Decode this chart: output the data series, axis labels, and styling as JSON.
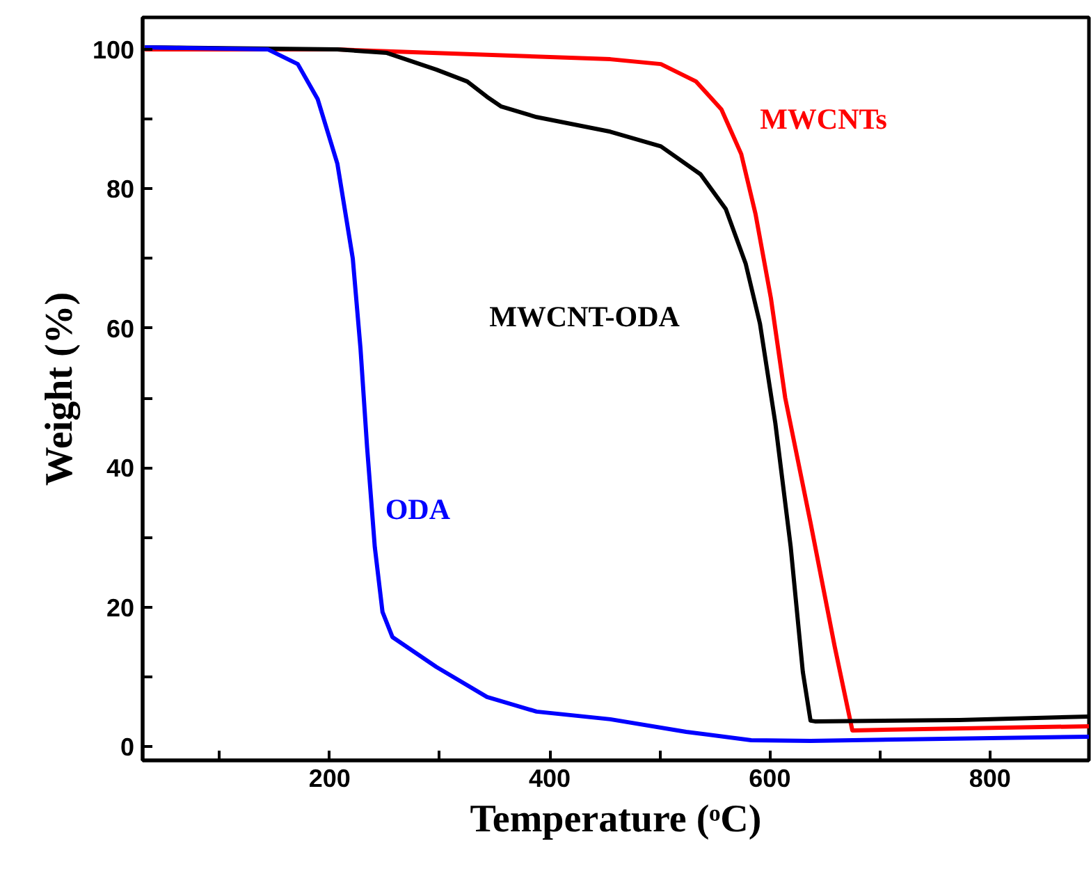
{
  "chart_data": {
    "type": "line",
    "xlabel": "Temperature (ᵒC)",
    "ylabel": "Weight (%)",
    "xlim": [
      30,
      890
    ],
    "ylim": [
      -2,
      104.6
    ],
    "xticks": [
      {
        "value": 100,
        "label": null
      },
      200,
      {
        "value": 300,
        "label": null
      },
      400,
      {
        "value": 500,
        "label": null
      },
      600,
      {
        "value": 700,
        "label": null
      },
      800
    ],
    "yticks": [
      0,
      {
        "value": 10,
        "label": null
      },
      20,
      {
        "value": 30,
        "label": null
      },
      40,
      {
        "value": 50,
        "label": null
      },
      60,
      {
        "value": 70,
        "label": null
      },
      80,
      {
        "value": 90,
        "label": null
      },
      100
    ],
    "grid": false,
    "legend": false,
    "line_style": "solid",
    "marker": "none",
    "series": [
      {
        "name": "MWCNTs",
        "color": "#ff0000",
        "x": [
          32,
          207,
          455,
          501,
          533,
          556,
          574,
          587,
          601,
          614,
          637,
          659,
          675,
          890
        ],
        "values": [
          100,
          100,
          98.6,
          97.9,
          95.4,
          91.4,
          85,
          76.4,
          64.3,
          50,
          32.1,
          14.3,
          2.3,
          2.9
        ]
      },
      {
        "name": "MWCNT-ODA",
        "color": "#000000",
        "x": [
          32,
          207,
          252,
          297,
          325,
          343,
          356,
          388,
          455,
          501,
          537,
          560,
          578,
          591,
          605,
          619,
          630,
          637,
          641,
          772,
          890
        ],
        "values": [
          100.3,
          100,
          99.5,
          97.1,
          95.4,
          93.2,
          91.8,
          90.3,
          88.2,
          86.1,
          82.1,
          77.1,
          69.3,
          60.7,
          46.4,
          28.6,
          10.7,
          3.7,
          3.6,
          3.8,
          4.3
        ]
      },
      {
        "name": "ODA",
        "color": "#0000ff",
        "x": [
          32,
          144,
          171,
          189,
          207,
          221,
          228,
          234,
          241,
          248,
          257,
          297,
          343,
          388,
          455,
          524,
          583,
          637,
          890
        ],
        "values": [
          100.3,
          100,
          97.9,
          92.9,
          83.6,
          70,
          57.1,
          42.9,
          28.6,
          19.3,
          15.7,
          11.4,
          7.1,
          5,
          3.9,
          2.1,
          0.9,
          0.8,
          1.4
        ]
      }
    ]
  }
}
